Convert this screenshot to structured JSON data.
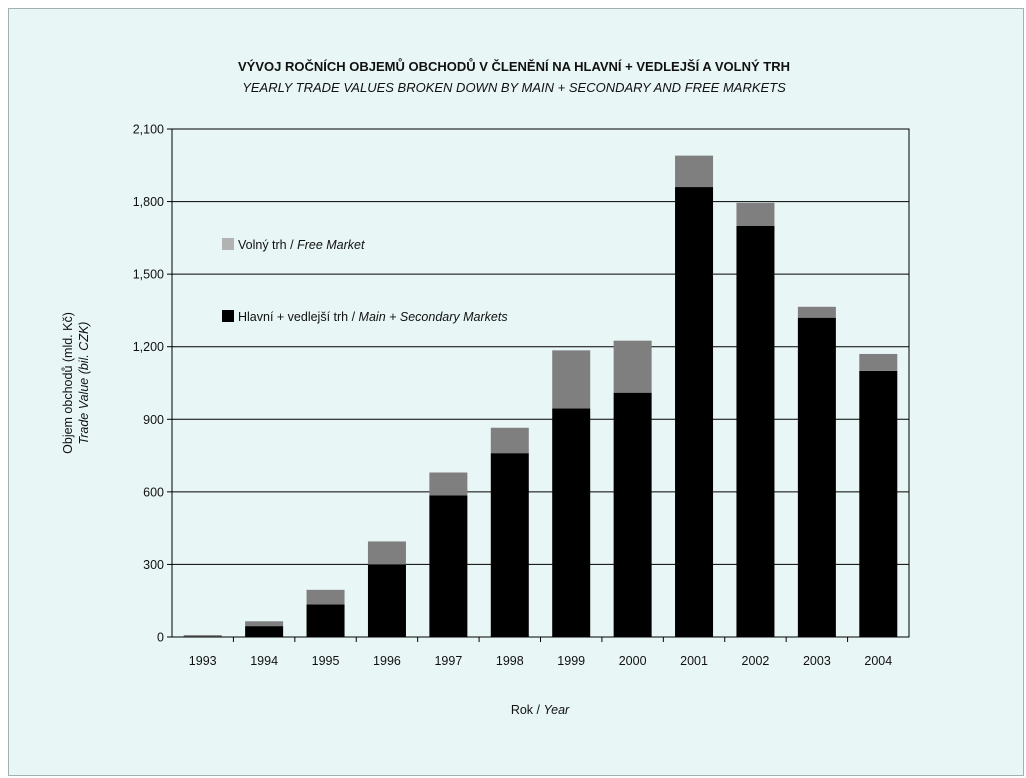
{
  "chart_data": {
    "type": "bar",
    "stacked": true,
    "title": "VÝVOJ ROČNÍCH OBJEMŮ OBCHODŮ V ČLENĚNÍ NA HLAVNÍ + VEDLEJŠÍ A VOLNÝ TRH",
    "subtitle": "YEARLY TRADE VALUES BROKEN DOWN BY MAIN + SECONDARY AND FREE MARKETS",
    "ylabel": "Objem obchodů (mld. Kč)",
    "ylabel_en": "Trade Value (bil. CZK)",
    "xlabel": "Rok / ",
    "xlabel_en": "Year",
    "ylim": [
      0,
      2100
    ],
    "yticks": [
      0,
      300,
      600,
      900,
      1200,
      1500,
      1800,
      2100
    ],
    "ytick_labels": [
      "0",
      "300",
      "600",
      "900",
      "1,200",
      "1,500",
      "1,800",
      "2,100"
    ],
    "grid": true,
    "legend_position": "upper-left",
    "categories": [
      "1993",
      "1994",
      "1995",
      "1996",
      "1997",
      "1998",
      "1999",
      "2000",
      "2001",
      "2002",
      "2003",
      "2004"
    ],
    "series": [
      {
        "name": "Hlavní + vedlejší trh / ",
        "name_en": "Main + Secondary Markets",
        "color": "#000000",
        "values": [
          3,
          45,
          135,
          300,
          585,
          760,
          945,
          1010,
          1860,
          1700,
          1320,
          1100
        ]
      },
      {
        "name": "Volný trh / ",
        "name_en": "Free Market",
        "color": "#7f7f7f",
        "legend_color": "#b2b2b2",
        "values": [
          5,
          20,
          60,
          95,
          95,
          105,
          240,
          215,
          130,
          95,
          45,
          70
        ]
      }
    ]
  }
}
